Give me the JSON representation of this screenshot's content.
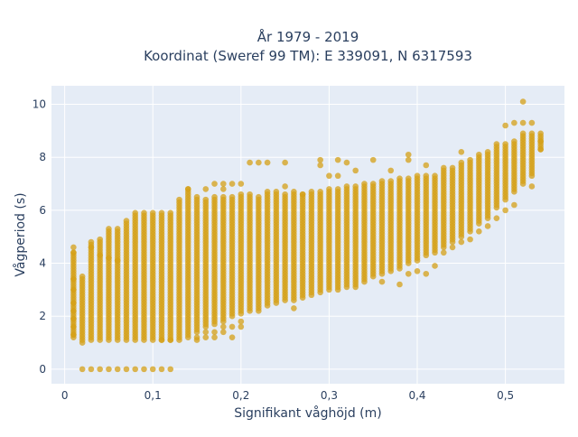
{
  "chart_data": {
    "type": "scatter",
    "title_line1": "År 1979 - 2019",
    "title_line2": "Koordinat (Sweref 99 TM): E 339091, N 6317593",
    "xlabel": "Signifikant våghöjd (m)",
    "ylabel": "Vågperiod (s)",
    "xlim": [
      -0.015,
      0.567
    ],
    "ylim": [
      -0.55,
      10.7
    ],
    "x_ticks": [
      0,
      0.1,
      0.2,
      0.3,
      0.4,
      0.5
    ],
    "x_tick_labels": [
      "0",
      "0,1",
      "0,2",
      "0,3",
      "0,4",
      "0,5"
    ],
    "y_ticks": [
      0,
      2,
      4,
      6,
      8,
      10
    ],
    "y_tick_labels": [
      "0",
      "2",
      "4",
      "6",
      "8",
      "10"
    ],
    "grid": true,
    "colors": {
      "marker": "#D4A017",
      "plot_bg": "#E5ECF6",
      "grid": "#ffffff",
      "text": "#2a3f5f"
    },
    "series": [
      {
        "columns": [
          [
            0.01,
            1.2,
            4.4
          ],
          [
            0.02,
            1.1,
            3.5
          ],
          [
            0.03,
            1.1,
            4.8
          ],
          [
            0.04,
            1.1,
            4.9
          ],
          [
            0.05,
            1.1,
            5.3
          ],
          [
            0.06,
            1.1,
            5.3
          ],
          [
            0.07,
            1.1,
            5.6
          ],
          [
            0.08,
            1.1,
            5.9
          ],
          [
            0.09,
            1.1,
            5.95
          ],
          [
            0.1,
            1.1,
            5.9
          ],
          [
            0.11,
            1.1,
            5.95
          ],
          [
            0.12,
            1.1,
            5.95
          ],
          [
            0.13,
            1.1,
            6.4
          ],
          [
            0.14,
            1.2,
            6.8
          ],
          [
            0.15,
            1.4,
            6.5
          ],
          [
            0.16,
            1.6,
            6.4
          ],
          [
            0.17,
            1.7,
            6.5
          ],
          [
            0.18,
            1.8,
            6.55
          ],
          [
            0.19,
            2.0,
            6.5
          ],
          [
            0.2,
            2.1,
            6.6
          ],
          [
            0.21,
            2.2,
            6.6
          ],
          [
            0.22,
            2.3,
            6.5
          ],
          [
            0.23,
            2.4,
            6.7
          ],
          [
            0.24,
            2.5,
            6.7
          ],
          [
            0.25,
            2.6,
            6.6
          ],
          [
            0.26,
            2.6,
            6.6
          ],
          [
            0.27,
            2.7,
            6.6
          ],
          [
            0.28,
            2.8,
            6.7
          ],
          [
            0.29,
            2.9,
            6.7
          ],
          [
            0.3,
            3.0,
            6.8
          ],
          [
            0.31,
            3.0,
            6.8
          ],
          [
            0.32,
            3.1,
            6.9
          ],
          [
            0.33,
            3.2,
            6.9
          ],
          [
            0.34,
            3.3,
            6.9
          ],
          [
            0.35,
            3.5,
            7.0
          ],
          [
            0.36,
            3.6,
            7.1
          ],
          [
            0.37,
            3.7,
            7.1
          ],
          [
            0.38,
            3.8,
            7.2
          ],
          [
            0.39,
            4.0,
            7.2
          ],
          [
            0.4,
            4.1,
            7.3
          ],
          [
            0.41,
            4.3,
            7.3
          ],
          [
            0.42,
            4.4,
            7.3
          ],
          [
            0.43,
            4.6,
            7.6
          ],
          [
            0.44,
            4.8,
            7.6
          ],
          [
            0.45,
            5.0,
            7.8
          ],
          [
            0.46,
            5.2,
            7.9
          ],
          [
            0.47,
            5.5,
            8.1
          ],
          [
            0.48,
            5.7,
            8.2
          ],
          [
            0.49,
            6.1,
            8.5
          ],
          [
            0.5,
            6.4,
            8.5
          ],
          [
            0.51,
            6.7,
            8.6
          ],
          [
            0.52,
            7.0,
            8.8
          ],
          [
            0.53,
            7.3,
            8.9
          ],
          [
            0.54,
            8.3,
            8.9
          ]
        ],
        "zero_points_x": [
          0.02,
          0.03,
          0.04,
          0.05,
          0.06,
          0.07,
          0.08,
          0.09,
          0.1,
          0.11,
          0.12
        ],
        "extra_points": [
          [
            0.01,
            4.6
          ],
          [
            0.01,
            4.4
          ],
          [
            0.01,
            3.4
          ],
          [
            0.01,
            3.0
          ],
          [
            0.01,
            2.5
          ],
          [
            0.01,
            2.2
          ],
          [
            0.01,
            1.9
          ],
          [
            0.01,
            1.6
          ],
          [
            0.01,
            1.3
          ],
          [
            0.02,
            1.0
          ],
          [
            0.03,
            4.6
          ],
          [
            0.04,
            4.3
          ],
          [
            0.05,
            4.2
          ],
          [
            0.06,
            4.1
          ],
          [
            0.11,
            1.1
          ],
          [
            0.12,
            1.1
          ],
          [
            0.14,
            6.8
          ],
          [
            0.15,
            1.2
          ],
          [
            0.15,
            1.1
          ],
          [
            0.16,
            6.8
          ],
          [
            0.16,
            1.2
          ],
          [
            0.16,
            1.4
          ],
          [
            0.17,
            1.2
          ],
          [
            0.17,
            1.4
          ],
          [
            0.18,
            1.4
          ],
          [
            0.18,
            1.6
          ],
          [
            0.19,
            1.2
          ],
          [
            0.19,
            1.6
          ],
          [
            0.2,
            1.6
          ],
          [
            0.2,
            1.8
          ],
          [
            0.17,
            7.0
          ],
          [
            0.18,
            6.8
          ],
          [
            0.18,
            7.0
          ],
          [
            0.19,
            7.0
          ],
          [
            0.2,
            7.0
          ],
          [
            0.21,
            7.8
          ],
          [
            0.22,
            2.2
          ],
          [
            0.22,
            7.8
          ],
          [
            0.23,
            7.8
          ],
          [
            0.25,
            6.9
          ],
          [
            0.25,
            7.8
          ],
          [
            0.26,
            6.7
          ],
          [
            0.26,
            2.3
          ],
          [
            0.27,
            6.6
          ],
          [
            0.29,
            7.9
          ],
          [
            0.29,
            7.7
          ],
          [
            0.3,
            7.3
          ],
          [
            0.31,
            7.3
          ],
          [
            0.31,
            7.9
          ],
          [
            0.32,
            7.8
          ],
          [
            0.33,
            7.5
          ],
          [
            0.33,
            3.1
          ],
          [
            0.34,
            7.0
          ],
          [
            0.35,
            7.9
          ],
          [
            0.36,
            3.3
          ],
          [
            0.37,
            7.5
          ],
          [
            0.38,
            3.2
          ],
          [
            0.39,
            8.1
          ],
          [
            0.39,
            7.9
          ],
          [
            0.39,
            3.6
          ],
          [
            0.4,
            3.7
          ],
          [
            0.41,
            3.6
          ],
          [
            0.41,
            7.7
          ],
          [
            0.42,
            3.9
          ],
          [
            0.43,
            4.4
          ],
          [
            0.44,
            4.6
          ],
          [
            0.45,
            8.2
          ],
          [
            0.45,
            4.8
          ],
          [
            0.46,
            4.9
          ],
          [
            0.47,
            5.2
          ],
          [
            0.48,
            5.4
          ],
          [
            0.49,
            5.7
          ],
          [
            0.5,
            9.2
          ],
          [
            0.5,
            6.0
          ],
          [
            0.51,
            9.3
          ],
          [
            0.51,
            6.2
          ],
          [
            0.52,
            10.1
          ],
          [
            0.52,
            9.3
          ],
          [
            0.52,
            8.9
          ],
          [
            0.53,
            9.3
          ],
          [
            0.53,
            6.9
          ],
          [
            0.54,
            8.6
          ],
          [
            0.54,
            8.3
          ]
        ]
      }
    ]
  }
}
